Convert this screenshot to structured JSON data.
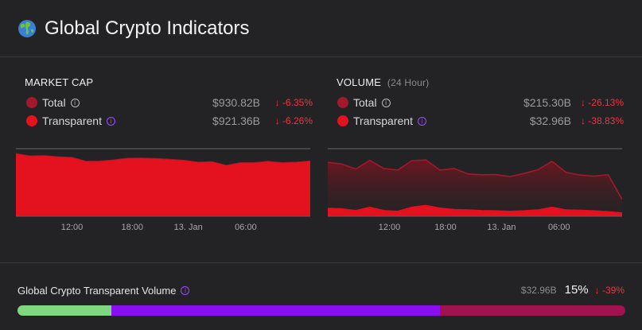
{
  "header": {
    "title": "Global Crypto Indicators"
  },
  "market_cap": {
    "heading": "MARKET CAP",
    "rows": [
      {
        "label": "Total",
        "value": "$930.82B",
        "change": "↓ -6.35%"
      },
      {
        "label": "Transparent",
        "value": "$921.36B",
        "change": "↓ -6.26%"
      }
    ]
  },
  "volume": {
    "heading": "VOLUME",
    "subheading": "(24 Hour)",
    "rows": [
      {
        "label": "Total",
        "value": "$215.30B",
        "change": "↓ -26.13%"
      },
      {
        "label": "Transparent",
        "value": "$32.96B",
        "change": "↓ -38.83%"
      }
    ]
  },
  "footer": {
    "title": "Global Crypto Transparent Volume",
    "value": "$32.96B",
    "percent": "15%",
    "change": "↓ -39%",
    "segments": [
      {
        "fraction": 0.155,
        "color": "#7fd77f"
      },
      {
        "fraction": 0.54,
        "color": "#8a0ff0"
      },
      {
        "fraction": 0.305,
        "color": "#a0134e"
      }
    ]
  },
  "colors": {
    "total": "#a1192a",
    "transparent": "#e4111f",
    "negative": "#f03342",
    "info_purple": "#9b4dff"
  },
  "icons": {
    "globe": "globe-icon",
    "info": "info-icon"
  },
  "chart_data": [
    {
      "type": "area",
      "x_ticks": [
        "12:00",
        "18:00",
        "13. Jan",
        "06:00"
      ],
      "x": [
        0,
        1,
        2,
        3,
        4,
        5,
        6,
        7,
        8,
        9,
        10,
        11,
        12,
        13,
        14,
        15,
        16,
        17,
        18,
        19,
        20,
        21
      ],
      "x_tick_positions": [
        4,
        8.3,
        12.3,
        16.4
      ],
      "ylim": [
        0,
        1000
      ],
      "series": [
        {
          "name": "Total",
          "values": [
            925,
            890,
            895,
            878,
            868,
            812,
            814,
            832,
            856,
            858,
            852,
            840,
            826,
            798,
            805,
            752,
            790,
            790,
            810,
            790,
            798,
            815
          ]
        },
        {
          "name": "Transparent",
          "values": [
            915,
            880,
            885,
            868,
            858,
            802,
            804,
            822,
            846,
            848,
            842,
            830,
            816,
            788,
            795,
            742,
            780,
            780,
            800,
            780,
            788,
            805
          ]
        }
      ]
    },
    {
      "type": "area",
      "x_ticks": [
        "12:00",
        "18:00",
        "13. Jan",
        "06:00"
      ],
      "x": [
        0,
        1,
        2,
        3,
        4,
        5,
        6,
        7,
        8,
        9,
        10,
        11,
        12,
        13,
        14,
        15,
        16,
        17,
        18,
        19,
        20,
        21
      ],
      "x_tick_positions": [
        4.4,
        8.4,
        12.4,
        16.5
      ],
      "ylim": [
        0,
        300
      ],
      "series": [
        {
          "name": "Total",
          "values": [
            240,
            232,
            210,
            248,
            212,
            205,
            247,
            250,
            205,
            212,
            188,
            184,
            185,
            176,
            190,
            207,
            244,
            195,
            183,
            178,
            185,
            75
          ]
        },
        {
          "name": "Transparent",
          "values": [
            35,
            33,
            25,
            40,
            25,
            22,
            40,
            48,
            36,
            30,
            28,
            25,
            24,
            22,
            24,
            28,
            40,
            28,
            26,
            24,
            20,
            15
          ]
        }
      ]
    }
  ]
}
